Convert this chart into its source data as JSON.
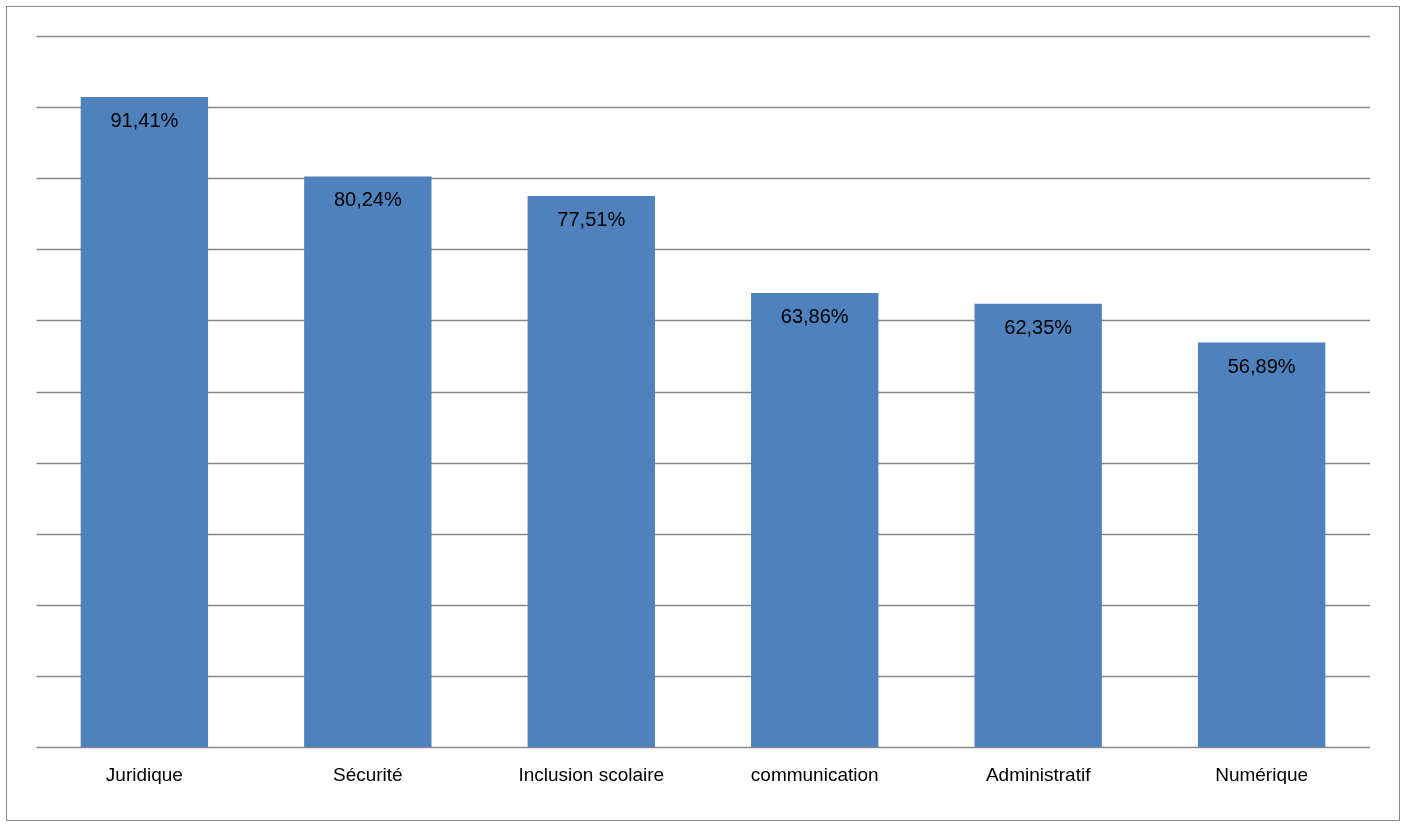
{
  "chart_data": {
    "type": "bar",
    "categories": [
      "Juridique",
      "Sécurité",
      "Inclusion scolaire",
      "communication",
      "Administratif",
      "Numérique"
    ],
    "values": [
      91.41,
      80.24,
      77.51,
      63.86,
      62.35,
      56.89
    ],
    "value_labels": [
      "91,41%",
      "80,24%",
      "77,51%",
      "63,86%",
      "62,35%",
      "56,89%"
    ],
    "color": "#4f81bd",
    "ylim": [
      0,
      100
    ],
    "yticks": [
      {
        "value": 0,
        "label": null
      },
      {
        "value": 10,
        "label": null
      },
      {
        "value": 20,
        "label": null
      },
      {
        "value": 30,
        "label": null
      },
      {
        "value": 40,
        "label": null
      },
      {
        "value": 50,
        "label": null
      },
      {
        "value": 60,
        "label": null
      },
      {
        "value": 70,
        "label": null
      },
      {
        "value": 80,
        "label": null
      },
      {
        "value": 90,
        "label": null
      },
      {
        "value": 100,
        "label": null
      }
    ],
    "tick_labels": "x",
    "grid": "y"
  }
}
